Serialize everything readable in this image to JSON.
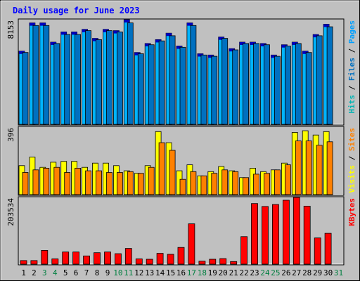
{
  "title": "Daily usage for June 2023",
  "colors": {
    "background": "#c0c0c0",
    "title": "#0000ff",
    "hits": "#00b4ff",
    "hits_top": "#0000c0",
    "files": "#0070c0",
    "pages": "#00a0ff",
    "visits": "#ffff00",
    "sites": "#ff8000",
    "kbytes": "#ff0000",
    "weekend_label": "#007f40"
  },
  "axis_labels": {
    "hits_panel": {
      "top": "8153",
      "side": [
        {
          "text": "Pages",
          "color": "#00a0ff"
        },
        {
          "text": " / ",
          "color": "#000000"
        },
        {
          "text": "Files",
          "color": "#0070c0"
        },
        {
          "text": " / ",
          "color": "#000000"
        },
        {
          "text": "Hits",
          "color": "#00b4b4"
        }
      ]
    },
    "visits_panel": {
      "top": "396",
      "side": [
        {
          "text": "Sites",
          "color": "#ff8000"
        },
        {
          "text": " / ",
          "color": "#000000"
        },
        {
          "text": "Visits",
          "color": "#ffff00"
        }
      ]
    },
    "kbytes_panel": {
      "top": "203534",
      "side": [
        {
          "text": "KBytes",
          "color": "#ff0000"
        }
      ]
    }
  },
  "chart_data": {
    "type": "bar",
    "title": "Daily usage for June 2023",
    "categories": [
      "1",
      "2",
      "3",
      "4",
      "5",
      "6",
      "7",
      "8",
      "9",
      "10",
      "11",
      "12",
      "13",
      "14",
      "15",
      "16",
      "17",
      "18",
      "19",
      "20",
      "21",
      "22",
      "23",
      "24",
      "25",
      "26",
      "27",
      "28",
      "29",
      "30",
      "31"
    ],
    "weekend_days": [
      "3",
      "4",
      "10",
      "11",
      "17",
      "18",
      "24",
      "25",
      "31"
    ],
    "panels": [
      {
        "name": "hits_panel",
        "ylim": [
          0,
          8153
        ],
        "series": [
          {
            "name": "Hits",
            "values": [
              5700,
              7900,
              7900,
              6400,
              7200,
              7200,
              7400,
              6700,
              7400,
              7300,
              8153,
              5600,
              6300,
              6600,
              7100,
              6100,
              7900,
              5500,
              5400,
              6800,
              5900,
              6400,
              6400,
              6300,
              5400,
              6200,
              6400,
              5700,
              7000,
              7800,
              0
            ]
          },
          {
            "name": "Files",
            "values": [
              5600,
              7700,
              7700,
              6300,
              7000,
              7000,
              7300,
              6600,
              7300,
              7200,
              7900,
              5500,
              6200,
              6500,
              6900,
              6000,
              7700,
              5400,
              5300,
              6700,
              5800,
              6300,
              6300,
              6200,
              5300,
              6100,
              6300,
              5600,
              6900,
              7600,
              0
            ]
          }
        ]
      },
      {
        "name": "visits_panel",
        "ylim": [
          0,
          396
        ],
        "series": [
          {
            "name": "Visits",
            "values": [
              170,
              220,
              160,
              190,
              195,
              195,
              160,
              185,
              185,
              170,
              140,
              125,
              170,
              370,
              305,
              140,
              175,
              110,
              135,
              165,
              140,
              100,
              155,
              135,
              145,
              185,
              365,
              375,
              350,
              370,
              0
            ]
          },
          {
            "name": "Sites",
            "values": [
              130,
              145,
              155,
              160,
              130,
              155,
              140,
              140,
              130,
              130,
              135,
              125,
              160,
              305,
              260,
              90,
              135,
              110,
              125,
              145,
              135,
              100,
              120,
              125,
              145,
              175,
              315,
              315,
              290,
              310,
              0
            ]
          }
        ]
      },
      {
        "name": "kbytes_panel",
        "ylim": [
          0,
          203534
        ],
        "series": [
          {
            "name": "KBytes",
            "values": [
              11000,
              11000,
              42000,
              16000,
              37000,
              37000,
              25000,
              35000,
              37000,
              32000,
              48000,
              16000,
              15000,
              33000,
              30000,
              51000,
              123000,
              9000,
              15000,
              17000,
              8000,
              84000,
              185000,
              176000,
              182000,
              195000,
              203534,
              177000,
              80000,
              94000,
              0
            ]
          }
        ]
      }
    ]
  }
}
